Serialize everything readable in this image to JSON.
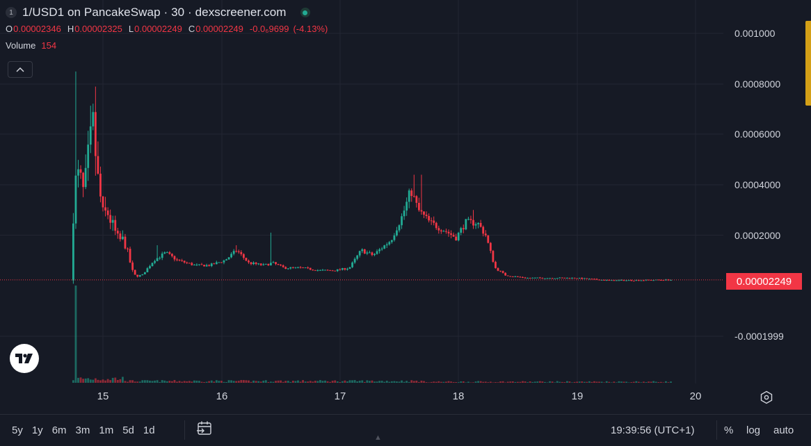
{
  "header": {
    "badge": "1",
    "title": "1/USD1 on PancakeSwap · 30 · dexscreener.com",
    "ohlc": {
      "o_label": "O",
      "o_value": "0.00002346",
      "h_label": "H",
      "h_value": "0.00002325",
      "l_label": "L",
      "l_value": "0.00002249",
      "c_label": "C",
      "c_value": "0.00002249",
      "change": "-0.0₆9699",
      "change_pct": "(-4.13%)"
    },
    "volume_label": "Volume",
    "volume_value": "154"
  },
  "price_axis": {
    "labels": [
      "0.001000",
      "0.0008000",
      "0.0006000",
      "0.0004000",
      "0.0002000",
      "-0.0001999"
    ],
    "last_price": "0.00002249"
  },
  "time_axis": {
    "labels": [
      "15",
      "16",
      "17",
      "18",
      "19",
      "20"
    ]
  },
  "bottom_bar": {
    "ranges": [
      "5y",
      "1y",
      "6m",
      "3m",
      "1m",
      "5d",
      "1d"
    ],
    "time": "19:39:56 (UTC+1)",
    "percent": "%",
    "log": "log",
    "auto": "auto"
  },
  "colors": {
    "background": "#161a25",
    "up": "#22ab94",
    "down": "#f23645",
    "grid": "#232632",
    "scroll_thumb": "#d4a017"
  },
  "chart_data": {
    "type": "candlestick",
    "x_unit": "day of month",
    "ylim": [
      -0.00025,
      0.00105
    ],
    "last_price": 2.249e-05,
    "keypoints": [
      [
        14.75,
        2e-05
      ],
      [
        14.78,
        0.0004
      ],
      [
        14.82,
        0.00044
      ],
      [
        14.86,
        0.00036
      ],
      [
        14.9,
        0.00052
      ],
      [
        14.94,
        0.00064
      ],
      [
        14.97,
        0.00045
      ],
      [
        15.02,
        0.00028
      ],
      [
        15.06,
        0.00029
      ],
      [
        15.1,
        0.00024
      ],
      [
        15.15,
        0.00018
      ],
      [
        15.2,
        0.00018
      ],
      [
        15.28,
        4e-05
      ],
      [
        15.35,
        4e-05
      ],
      [
        15.45,
        0.0001
      ],
      [
        15.55,
        0.00013
      ],
      [
        15.65,
        0.0001
      ],
      [
        15.8,
        8e-05
      ],
      [
        15.92,
        8e-05
      ],
      [
        16.05,
        0.0001
      ],
      [
        16.15,
        0.00014
      ],
      [
        16.25,
        9e-05
      ],
      [
        16.38,
        8e-05
      ],
      [
        16.45,
        9e-05
      ],
      [
        16.55,
        7e-05
      ],
      [
        16.7,
        7e-05
      ],
      [
        16.85,
        6e-05
      ],
      [
        16.98,
        6e-05
      ],
      [
        17.1,
        7e-05
      ],
      [
        17.2,
        0.00014
      ],
      [
        17.3,
        0.00012
      ],
      [
        17.45,
        0.00018
      ],
      [
        17.55,
        0.00028
      ],
      [
        17.62,
        0.00038
      ],
      [
        17.68,
        0.0003
      ],
      [
        17.78,
        0.00025
      ],
      [
        17.9,
        0.00022
      ],
      [
        18.0,
        0.00019
      ],
      [
        18.08,
        0.00025
      ],
      [
        18.18,
        0.00025
      ],
      [
        18.25,
        0.0002
      ],
      [
        18.33,
        7e-05
      ],
      [
        18.42,
        4e-05
      ],
      [
        18.6,
        3e-05
      ],
      [
        18.8,
        3e-05
      ],
      [
        19.0,
        3e-05
      ],
      [
        19.3,
        2e-05
      ],
      [
        19.8,
        2.249e-05
      ]
    ],
    "spikes": [
      [
        14.78,
        0.00085
      ],
      [
        14.94,
        0.00079
      ],
      [
        15.45,
        0.00016
      ],
      [
        16.12,
        0.00016
      ],
      [
        16.42,
        0.00021
      ],
      [
        17.62,
        0.00044
      ],
      [
        17.68,
        0.00044
      ],
      [
        18.12,
        0.0003
      ]
    ],
    "volume_peak_x": 14.77,
    "volume_peak": 1
  }
}
